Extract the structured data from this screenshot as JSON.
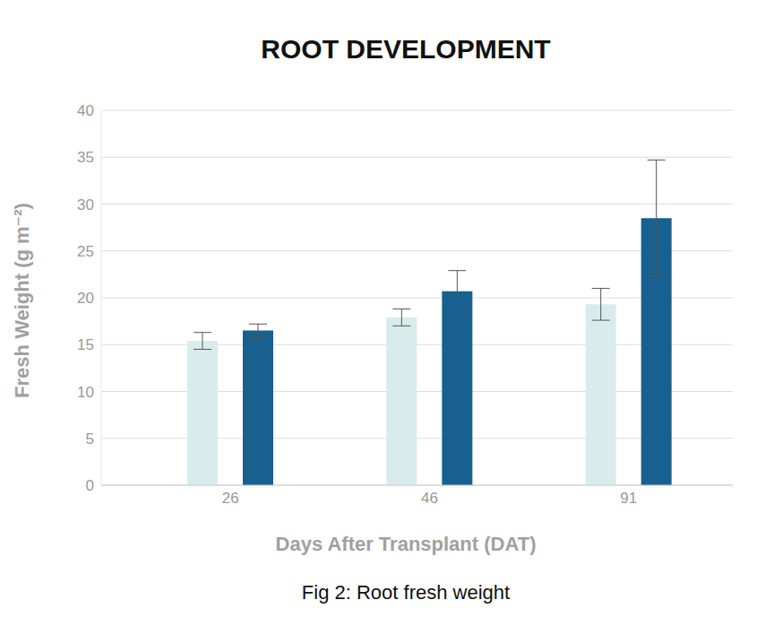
{
  "chart_data": {
    "type": "bar",
    "title": "ROOT DEVELOPMENT",
    "caption": "Fig 2: Root fresh weight",
    "x_label": "Days After Transplant (DAT)",
    "y_label": "Fresh Weight (g m⁻²)",
    "categories": [
      "26",
      "46",
      "91"
    ],
    "series": [
      {
        "color": "#d9ecec",
        "values": [
          15.4,
          17.9,
          19.3
        ],
        "errors": [
          0.9,
          0.9,
          1.7
        ]
      },
      {
        "color": "#17608f",
        "values": [
          16.5,
          20.7,
          28.5
        ],
        "errors": [
          0.7,
          2.2,
          6.2
        ]
      }
    ],
    "ylim": [
      0,
      40
    ],
    "yticks": [
      0,
      5,
      10,
      15,
      20,
      25,
      30,
      35,
      40
    ],
    "grid": true
  }
}
